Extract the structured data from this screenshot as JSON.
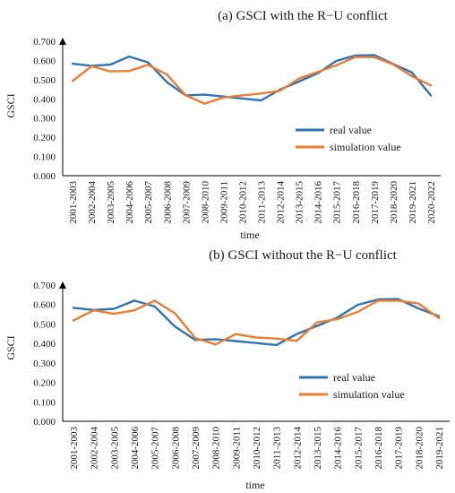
{
  "colors": {
    "real": "#2E75B6",
    "simulation": "#ED7D31",
    "axis": "#000000"
  },
  "chart_data": [
    {
      "type": "line",
      "title": "(a) GSCI with the R−U conflict",
      "xlabel": "time",
      "ylabel": "GSCI",
      "ylim": [
        0,
        0.7
      ],
      "yticks": [
        "0.000",
        "0.100",
        "0.200",
        "0.300",
        "0.400",
        "0.500",
        "0.600",
        "0.700"
      ],
      "categories": [
        "2001-2003",
        "2002-2004",
        "2003-2005",
        "2004-2006",
        "2005-2007",
        "2006-2008",
        "2007-2009",
        "2008-2010",
        "2009-2011",
        "2010-2012",
        "2011-2013",
        "2012-2014",
        "2013-2015",
        "2014-2016",
        "2015-2017",
        "2016-2018",
        "2017-2019",
        "2018-2020",
        "2019-2021",
        "2020-2022"
      ],
      "legend_position": "right-middle",
      "series": [
        {
          "name": "real value",
          "values": [
            0.583,
            0.572,
            0.578,
            0.62,
            0.59,
            0.487,
            0.418,
            0.422,
            0.412,
            0.402,
            0.392,
            0.448,
            0.49,
            0.533,
            0.598,
            0.626,
            0.628,
            0.582,
            0.537,
            0.418
          ]
        },
        {
          "name": "simulation value",
          "values": [
            0.493,
            0.57,
            0.543,
            0.545,
            0.577,
            0.527,
            0.418,
            0.375,
            0.407,
            0.418,
            0.428,
            0.442,
            0.505,
            0.54,
            0.575,
            0.618,
            0.617,
            0.58,
            0.518,
            0.47
          ]
        }
      ]
    },
    {
      "type": "line",
      "title": "(b) GSCI without the R−U conflict",
      "xlabel": "time",
      "ylabel": "GSCI",
      "ylim": [
        0,
        0.7
      ],
      "yticks": [
        "0.000",
        "0.100",
        "0.200",
        "0.300",
        "0.400",
        "0.500",
        "0.600",
        "0.700"
      ],
      "categories": [
        "2001-2003",
        "2002-2004",
        "2003-2005",
        "2004-2006",
        "2005-2007",
        "2006-2008",
        "2007-2009",
        "2008-2010",
        "2009-2011",
        "2010-2012",
        "2011-2013",
        "2012-2014",
        "2013-2015",
        "2014-2016",
        "2015-2017",
        "2016-2018",
        "2017-2019",
        "2018-2020",
        "2019-2021"
      ],
      "legend_position": "right-middle",
      "series": [
        {
          "name": "real value",
          "values": [
            0.583,
            0.572,
            0.578,
            0.62,
            0.59,
            0.487,
            0.418,
            0.422,
            0.412,
            0.402,
            0.392,
            0.448,
            0.49,
            0.533,
            0.598,
            0.626,
            0.628,
            0.58,
            0.54
          ]
        },
        {
          "name": "simulation value",
          "values": [
            0.518,
            0.57,
            0.552,
            0.57,
            0.62,
            0.555,
            0.428,
            0.395,
            0.448,
            0.43,
            0.425,
            0.413,
            0.508,
            0.525,
            0.562,
            0.62,
            0.62,
            0.605,
            0.53
          ]
        }
      ]
    }
  ]
}
